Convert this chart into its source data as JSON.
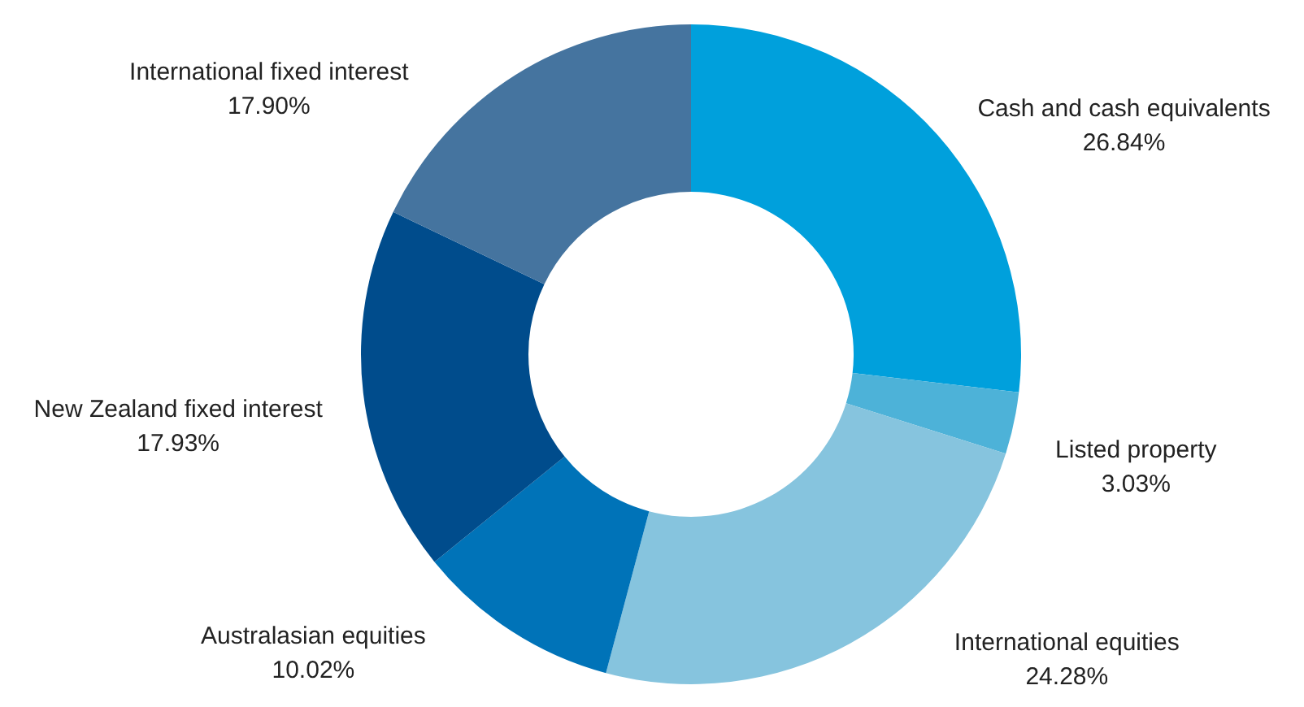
{
  "chart_data": {
    "type": "donut",
    "categories": [
      "Cash and cash equivalents",
      "Listed property",
      "International equities",
      "Australasian equities",
      "New Zealand fixed interest",
      "International fixed interest"
    ],
    "values": [
      26.84,
      3.03,
      24.28,
      10.02,
      17.93,
      17.9
    ],
    "value_labels": [
      "26.84%",
      "3.03%",
      "24.28%",
      "10.02%",
      "17.93%",
      "17.90%"
    ],
    "colors": [
      "#00a0dc",
      "#4db2d8",
      "#86c4de",
      "#0073b8",
      "#004c8c",
      "#45749f"
    ]
  }
}
